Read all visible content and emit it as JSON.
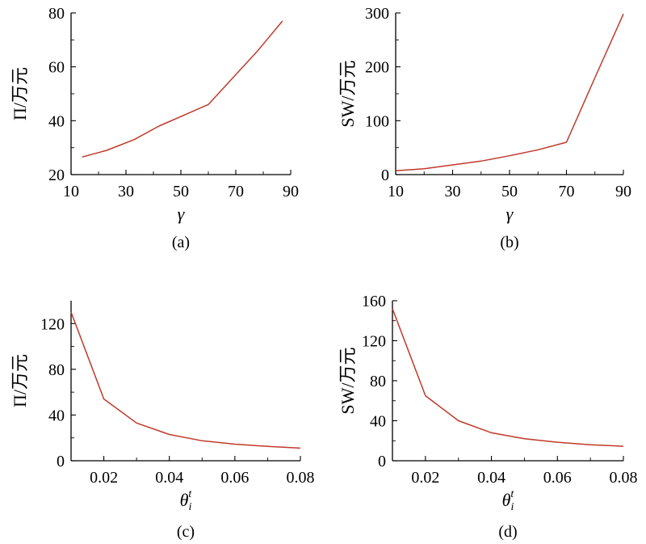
{
  "chart_data": [
    {
      "panel": "(a)",
      "type": "line",
      "xlabel": "γ",
      "ylabel": "Π/万元",
      "xlim": [
        10,
        90
      ],
      "ylim": [
        20,
        80
      ],
      "xticks": [
        10,
        30,
        50,
        70,
        90
      ],
      "yticks": [
        20,
        40,
        60,
        80
      ],
      "x": [
        14,
        23,
        33,
        42,
        51,
        60,
        69,
        78,
        87
      ],
      "series": [
        {
          "values": [
            26.5,
            29.0,
            33.0,
            38.0,
            42.0,
            46.0,
            56.0,
            66.0,
            77.0
          ]
        }
      ]
    },
    {
      "panel": "(b)",
      "type": "line",
      "xlabel": "γ",
      "ylabel": "SW/万元",
      "xlim": [
        10,
        90
      ],
      "ylim": [
        0,
        300
      ],
      "xticks": [
        10,
        30,
        50,
        70,
        90
      ],
      "yticks": [
        0,
        100,
        200,
        300
      ],
      "x": [
        10,
        20,
        30,
        40,
        50,
        60,
        70,
        80,
        90
      ],
      "series": [
        {
          "values": [
            7,
            11,
            18,
            25,
            35,
            46,
            60,
            180,
            298
          ]
        }
      ]
    },
    {
      "panel": "(c)",
      "type": "line",
      "xlabel": "θ",
      "xlabel_sub": "i",
      "xlabel_sup": "t",
      "ylabel": "Π/万元",
      "xlim": [
        0.01,
        0.08
      ],
      "ylim": [
        0,
        140
      ],
      "xticks": [
        "0.02",
        "0.04",
        "0.06",
        "0.08"
      ],
      "yticks": [
        0,
        40,
        80,
        120
      ],
      "x": [
        0.01,
        0.02,
        0.03,
        0.04,
        0.05,
        0.06,
        0.07,
        0.08
      ],
      "series": [
        {
          "values": [
            130,
            54,
            33,
            23,
            17.5,
            14.5,
            12.5,
            11
          ]
        }
      ]
    },
    {
      "panel": "(d)",
      "type": "line",
      "xlabel": "θ",
      "xlabel_sub": "i",
      "xlabel_sup": "t",
      "ylabel": "SW/万元",
      "xlim": [
        0.01,
        0.08
      ],
      "ylim": [
        0,
        160
      ],
      "xticks": [
        "0.02",
        "0.04",
        "0.06",
        "0.08"
      ],
      "yticks": [
        0,
        40,
        80,
        120,
        160
      ],
      "x": [
        0.01,
        0.02,
        0.03,
        0.04,
        0.05,
        0.06,
        0.07,
        0.08
      ],
      "series": [
        {
          "values": [
            152,
            65,
            40,
            28,
            22,
            18.5,
            16,
            14.5
          ]
        }
      ]
    }
  ],
  "style": {
    "line_color": "#c0392b",
    "axis_color": "#000000"
  }
}
